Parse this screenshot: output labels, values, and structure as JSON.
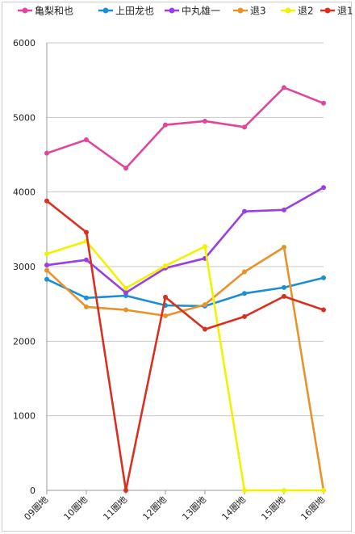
{
  "chart_data": {
    "type": "line",
    "categories": [
      "09圏地",
      "10圏地",
      "11圏地",
      "12圏地",
      "13圏地",
      "14圏地",
      "15圏地",
      "16圏地"
    ],
    "ylim": [
      0,
      6000
    ],
    "yticks": [
      0,
      1000,
      2000,
      3000,
      4000,
      5000,
      6000
    ],
    "grid": true,
    "legend_position": "top",
    "series": [
      {
        "name": "亀梨和也",
        "color": "#e0469b",
        "values": [
          4520,
          4700,
          4320,
          4900,
          4950,
          4870,
          5400,
          5190
        ]
      },
      {
        "name": "上田龙也",
        "color": "#1a8fd6",
        "values": [
          2830,
          2580,
          2610,
          2480,
          2470,
          2640,
          2720,
          2850
        ]
      },
      {
        "name": "中丸雄一",
        "color": "#9b3fe0",
        "values": [
          3020,
          3090,
          2650,
          2980,
          3110,
          3740,
          3760,
          4060
        ]
      },
      {
        "name": "退3",
        "color": "#e8932a",
        "values": [
          2950,
          2460,
          2420,
          2340,
          2490,
          2930,
          3260,
          0
        ]
      },
      {
        "name": "退2",
        "color": "#f2f200",
        "values": [
          3170,
          3340,
          2710,
          3010,
          3270,
          0,
          0,
          0
        ]
      },
      {
        "name": "退1",
        "color": "#d93020",
        "values": [
          3880,
          3460,
          0,
          2590,
          2160,
          2330,
          2600,
          2420
        ]
      }
    ]
  }
}
